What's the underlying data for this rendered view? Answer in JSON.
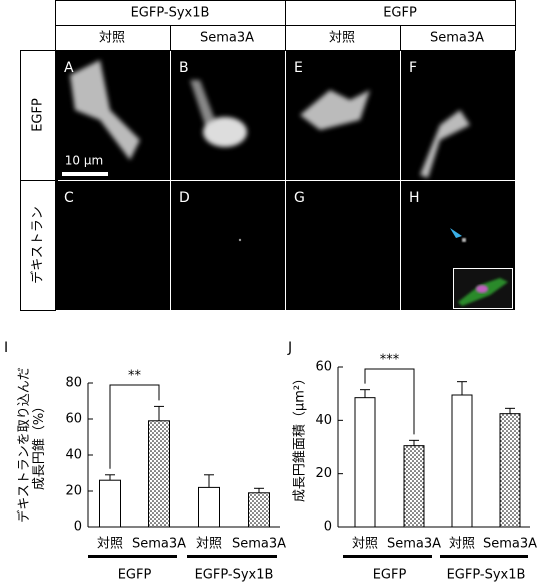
{
  "figure": {
    "groups": [
      "EGFP-Syx1B",
      "EGFP"
    ],
    "conditions": [
      "対照",
      "Sema3A",
      "対照",
      "Sema3A"
    ],
    "row_labels": [
      "EGFP",
      "デキストラン"
    ],
    "panel_letters": [
      [
        "A",
        "B",
        "E",
        "F"
      ],
      [
        "C",
        "D",
        "G",
        "H"
      ]
    ],
    "scale_bar": "10 µm"
  },
  "chart_data": [
    {
      "type": "bar",
      "label": "I",
      "ylabel": [
        "デキストランを取り込んだ",
        "成長円錐（%）"
      ],
      "categories": [
        "対照",
        "Sema3A",
        "対照",
        "Sema3A"
      ],
      "groups": [
        "EGFP",
        "EGFP-Syx1B"
      ],
      "values": [
        26,
        59,
        22,
        19
      ],
      "errors": [
        3,
        8,
        7,
        2.5
      ],
      "patterns": [
        "open",
        "dotted",
        "open",
        "dotted"
      ],
      "ylim": [
        0,
        80
      ],
      "yticks": [
        0,
        20,
        40,
        60,
        80
      ],
      "significance": "**"
    },
    {
      "type": "bar",
      "label": "J",
      "ylabel": [
        "成長円錐面積（µm²）"
      ],
      "categories": [
        "対照",
        "Sema3A",
        "対照",
        "Sema3A"
      ],
      "groups": [
        "EGFP",
        "EGFP-Syx1B"
      ],
      "values": [
        48.5,
        30.5,
        49.5,
        42.5
      ],
      "errors": [
        3,
        2,
        5,
        2
      ],
      "patterns": [
        "open",
        "dotted",
        "open",
        "dotted"
      ],
      "ylim": [
        0,
        60
      ],
      "yticks": [
        0,
        20,
        40,
        60
      ],
      "significance": "***"
    }
  ]
}
